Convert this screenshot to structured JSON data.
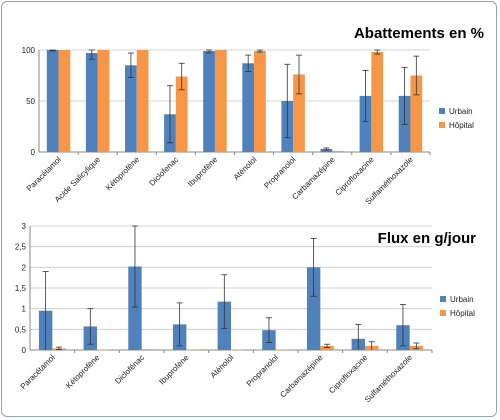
{
  "charts": [
    {
      "type": "bar",
      "title": "Abattements en %",
      "categories": [
        "Paracétamol",
        "Acide Salicylique",
        "Kétoprofène",
        "Diclofenac",
        "Ibuprofène",
        "Aténolol",
        "Propranolol",
        "Carbamazépine",
        "Ciprofloxacine",
        "Sulfaméthoxazole"
      ],
      "ylim": [
        0,
        100
      ],
      "yticks": [
        "0",
        "50",
        "100"
      ],
      "grid": true,
      "legend": "right",
      "series": [
        {
          "name": "Urbain",
          "color": "#4f81bd",
          "values": [
            100,
            97,
            85,
            37,
            99,
            87,
            50,
            3,
            55,
            55
          ],
          "err": [
            1,
            6,
            12,
            28,
            2,
            8,
            36,
            1,
            25,
            28
          ]
        },
        {
          "name": "Hôpital",
          "color": "#f79646",
          "values": [
            100,
            100,
            100,
            74,
            100,
            99,
            76,
            1,
            98,
            75
          ],
          "err": [
            0,
            0,
            0,
            13,
            0,
            1,
            19,
            0,
            2,
            19
          ]
        }
      ]
    },
    {
      "type": "bar",
      "title": "Flux en g/jour",
      "categories": [
        "Paracétamol",
        "Kétoprofène",
        "Diclofénac",
        "Ibuprofène",
        "Aténolol",
        "Propranolol",
        "Carbamazépine",
        "Ciprofloxacine",
        "Sulfaméthoxazole"
      ],
      "ylim": [
        0,
        3
      ],
      "yticks": [
        "0",
        "0,5",
        "1",
        "1,5",
        "2",
        "2,5",
        "3"
      ],
      "grid": true,
      "legend": "right",
      "series": [
        {
          "name": "Urbain",
          "color": "#4f81bd",
          "values": [
            0.95,
            0.57,
            2.02,
            0.62,
            1.17,
            0.48,
            2.0,
            0.27,
            0.6
          ],
          "err": [
            0.95,
            0.43,
            0.98,
            0.52,
            0.65,
            0.3,
            0.7,
            0.35,
            0.5
          ]
        },
        {
          "name": "Hôpital",
          "color": "#f79646",
          "values": [
            0.04,
            0.01,
            0.02,
            0.01,
            0.01,
            0.01,
            0.1,
            0.1,
            0.1
          ],
          "err": [
            0.03,
            0.0,
            0.0,
            0.0,
            0.0,
            0.0,
            0.04,
            0.1,
            0.07
          ]
        }
      ]
    }
  ],
  "chart_data": [
    {
      "type": "bar",
      "title": "Abattements en %",
      "categories": [
        "Paracétamol",
        "Acide Salicylique",
        "Kétoprofène",
        "Diclofenac",
        "Ibuprofène",
        "Aténolol",
        "Propranolol",
        "Carbamazépine",
        "Ciprofloxacine",
        "Sulfaméthoxazole"
      ],
      "series": [
        {
          "name": "Urbain",
          "values": [
            100,
            97,
            85,
            37,
            99,
            87,
            50,
            3,
            55,
            55
          ]
        },
        {
          "name": "Hôpital",
          "values": [
            100,
            100,
            100,
            74,
            100,
            99,
            76,
            1,
            98,
            75
          ]
        }
      ],
      "ylim": [
        0,
        100
      ]
    },
    {
      "type": "bar",
      "title": "Flux en g/jour",
      "categories": [
        "Paracétamol",
        "Kétoprofène",
        "Diclofénac",
        "Ibuprofène",
        "Aténolol",
        "Propranolol",
        "Carbamazépine",
        "Ciprofloxacine",
        "Sulfaméthoxazole"
      ],
      "series": [
        {
          "name": "Urbain",
          "values": [
            0.95,
            0.57,
            2.02,
            0.62,
            1.17,
            0.48,
            2.0,
            0.27,
            0.6
          ]
        },
        {
          "name": "Hôpital",
          "values": [
            0.04,
            0.01,
            0.02,
            0.01,
            0.01,
            0.01,
            0.1,
            0.1,
            0.1
          ]
        }
      ],
      "ylim": [
        0,
        3
      ]
    }
  ]
}
